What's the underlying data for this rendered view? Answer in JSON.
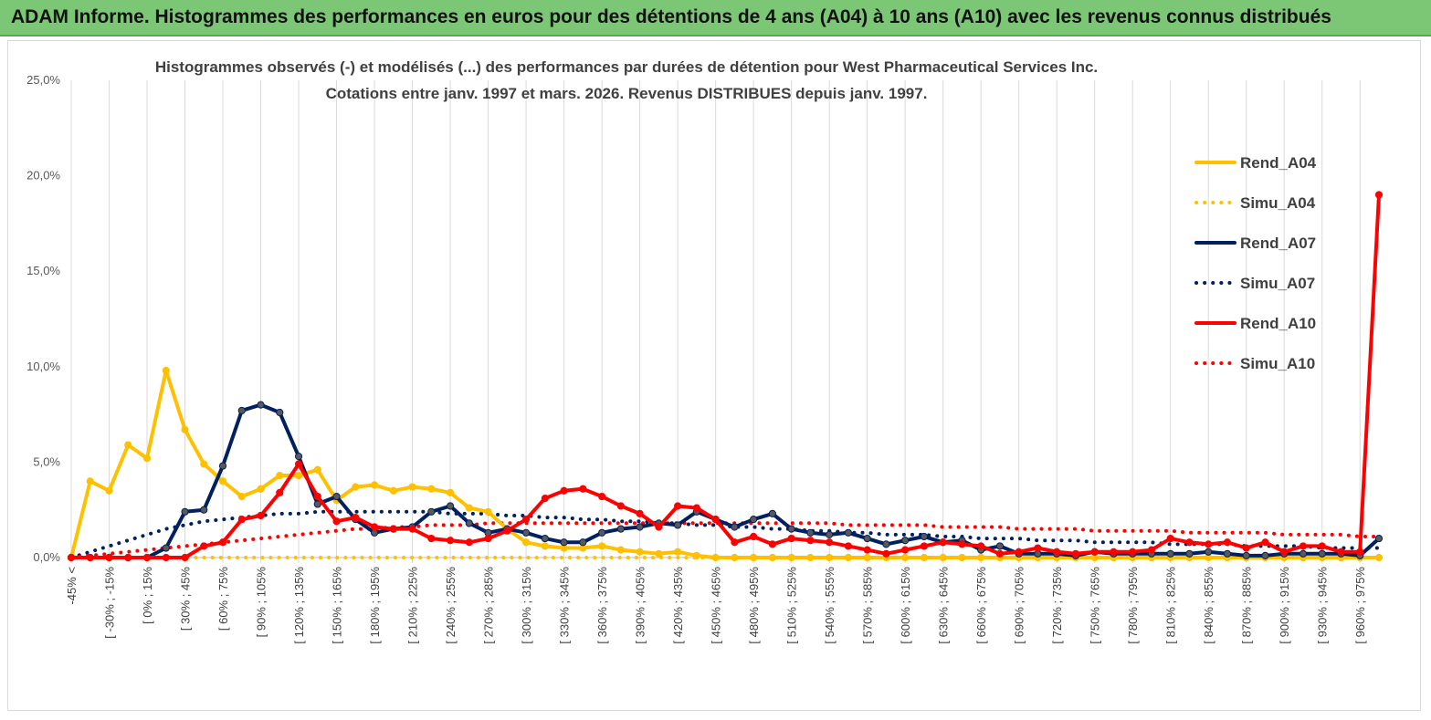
{
  "banner": {
    "title": "ADAM Informe. Histogrammes des performances en euros pour des détentions de 4 ans (A04) à 10 ans (A10) avec les revenus connus distribués"
  },
  "chart_data": {
    "type": "line",
    "title": "Histogrammes observés (-) et modélisés (...) des performances par durées de détention pour West Pharmaceutical Services  Inc.",
    "subtitle": "Cotations entre janv. 1997 et mars. 2026.  Revenus DISTRIBUES depuis janv. 1997.",
    "ylim": [
      0,
      25
    ],
    "yticks": [
      "0,0%",
      "5,0%",
      "10,0%",
      "15,0%",
      "20,0%",
      "25,0%"
    ],
    "grid": "vertical",
    "legend_position": "right",
    "x_tick_labels": [
      "-45% <",
      "[ -30% ; -15%",
      "[ 0% ; 15%",
      "[ 30% ; 45%",
      "[ 60% ; 75%",
      "[ 90% ; 105%",
      "[ 120% ; 135%",
      "[ 150% ; 165%",
      "[ 180% ; 195%",
      "[ 210% ; 225%",
      "[ 240% ; 255%",
      "[ 270% ; 285%",
      "[ 300% ; 315%",
      "[ 330% ; 345%",
      "[ 360% ; 375%",
      "[ 390% ; 405%",
      "[ 420% ; 435%",
      "[ 450% ; 465%",
      "[ 480% ; 495%",
      "[ 510% ; 525%",
      "[ 540% ; 555%",
      "[ 570% ; 585%",
      "[ 600% ; 615%",
      "[ 630% ; 645%",
      "[ 660% ; 675%",
      "[ 690% ; 705%",
      "[ 720% ; 735%",
      "[ 750% ; 765%",
      "[ 780% ; 795%",
      "[ 810% ; 825%",
      "[ 840% ; 855%",
      "[ 870% ; 885%",
      "[ 900% ; 915%",
      "[ 930% ; 945%",
      "[ 960% ; 975%"
    ],
    "series": [
      {
        "name": "Rend_A04",
        "color": "#ffc000",
        "style": "solid",
        "markers": true,
        "values": [
          0,
          4.0,
          3.5,
          5.9,
          5.2,
          9.8,
          6.7,
          4.9,
          4.0,
          3.2,
          3.6,
          4.3,
          4.3,
          4.6,
          3.0,
          3.7,
          3.8,
          3.5,
          3.7,
          3.6,
          3.4,
          2.6,
          2.4,
          1.5,
          0.8,
          0.6,
          0.5,
          0.5,
          0.6,
          0.4,
          0.3,
          0.2,
          0.3,
          0.1,
          0,
          0,
          0,
          0,
          0,
          0,
          0,
          0,
          0,
          0,
          0,
          0,
          0,
          0,
          0,
          0,
          0,
          0,
          0,
          0,
          0,
          0,
          0,
          0,
          0,
          0,
          0,
          0,
          0,
          0,
          0,
          0,
          0,
          0,
          0,
          0
        ]
      },
      {
        "name": "Simu_A04",
        "color": "#ffc000",
        "style": "dotted",
        "markers": false,
        "values": [
          0,
          0,
          0,
          0,
          0,
          0,
          0,
          0,
          0,
          0,
          0,
          0,
          0,
          0,
          0,
          0,
          0,
          0,
          0,
          0,
          0,
          0,
          0,
          0,
          0,
          0,
          0,
          0,
          0,
          0,
          0,
          0,
          0,
          0,
          0,
          0,
          0,
          0,
          0,
          0,
          0,
          0,
          0,
          0,
          0,
          0,
          0,
          0,
          0,
          0,
          0,
          0,
          0,
          0,
          0,
          0,
          0,
          0,
          0,
          0,
          0,
          0,
          0,
          0,
          0,
          0,
          0,
          0,
          0,
          0
        ]
      },
      {
        "name": "Rend_A07",
        "color": "#002060",
        "style": "solid",
        "markers": true,
        "values": [
          0,
          0,
          0,
          0,
          0,
          0.5,
          2.4,
          2.5,
          4.8,
          7.7,
          8.0,
          7.6,
          5.3,
          2.8,
          3.2,
          2.0,
          1.3,
          1.5,
          1.6,
          2.4,
          2.7,
          1.8,
          1.3,
          1.5,
          1.3,
          1.0,
          0.8,
          0.8,
          1.3,
          1.5,
          1.6,
          1.8,
          1.7,
          2.4,
          2.0,
          1.6,
          2.0,
          2.3,
          1.5,
          1.3,
          1.2,
          1.3,
          1.0,
          0.7,
          0.9,
          1.1,
          0.8,
          0.9,
          0.4,
          0.6,
          0.2,
          0.2,
          0.2,
          0.1,
          0.3,
          0.2,
          0.2,
          0.2,
          0.2,
          0.2,
          0.3,
          0.2,
          0.1,
          0.1,
          0.2,
          0.2,
          0.2,
          0.2,
          0.1,
          1.0
        ]
      },
      {
        "name": "Simu_A07",
        "color": "#002060",
        "style": "dotted",
        "markers": false,
        "values": [
          0,
          0.3,
          0.6,
          0.9,
          1.2,
          1.5,
          1.7,
          1.9,
          2.0,
          2.1,
          2.2,
          2.3,
          2.3,
          2.4,
          2.4,
          2.4,
          2.4,
          2.4,
          2.4,
          2.4,
          2.3,
          2.3,
          2.3,
          2.2,
          2.2,
          2.1,
          2.1,
          2.0,
          2.0,
          1.9,
          1.9,
          1.8,
          1.8,
          1.7,
          1.7,
          1.6,
          1.6,
          1.5,
          1.5,
          1.4,
          1.4,
          1.3,
          1.3,
          1.2,
          1.2,
          1.2,
          1.1,
          1.1,
          1.0,
          1.0,
          1.0,
          0.9,
          0.9,
          0.9,
          0.8,
          0.8,
          0.8,
          0.8,
          0.7,
          0.7,
          0.7,
          0.7,
          0.6,
          0.6,
          0.6,
          0.6,
          0.5,
          0.5,
          0.5,
          0.5
        ]
      },
      {
        "name": "Rend_A10",
        "color": "#ff0000",
        "style": "solid",
        "markers": true,
        "values": [
          0,
          0,
          0,
          0,
          0,
          0,
          0,
          0.6,
          0.8,
          2.0,
          2.2,
          3.4,
          4.9,
          3.2,
          1.9,
          2.1,
          1.6,
          1.5,
          1.5,
          1.0,
          0.9,
          0.8,
          1.0,
          1.4,
          2.0,
          3.1,
          3.5,
          3.6,
          3.2,
          2.7,
          2.3,
          1.6,
          2.7,
          2.6,
          2.0,
          0.8,
          1.1,
          0.7,
          1.0,
          0.9,
          0.8,
          0.6,
          0.4,
          0.2,
          0.4,
          0.6,
          0.8,
          0.7,
          0.6,
          0.2,
          0.3,
          0.5,
          0.3,
          0.2,
          0.3,
          0.3,
          0.3,
          0.4,
          1.0,
          0.8,
          0.7,
          0.8,
          0.5,
          0.8,
          0.3,
          0.6,
          0.6,
          0.3,
          0.3,
          19.0
        ]
      },
      {
        "name": "Simu_A10",
        "color": "#ff0000",
        "style": "dotted",
        "markers": false,
        "values": [
          0,
          0.1,
          0.2,
          0.3,
          0.4,
          0.5,
          0.6,
          0.7,
          0.8,
          0.9,
          1.0,
          1.1,
          1.2,
          1.3,
          1.4,
          1.5,
          1.5,
          1.6,
          1.6,
          1.7,
          1.7,
          1.7,
          1.8,
          1.8,
          1.8,
          1.8,
          1.8,
          1.8,
          1.8,
          1.8,
          1.8,
          1.8,
          1.8,
          1.8,
          1.8,
          1.8,
          1.8,
          1.8,
          1.8,
          1.8,
          1.8,
          1.7,
          1.7,
          1.7,
          1.7,
          1.7,
          1.6,
          1.6,
          1.6,
          1.6,
          1.5,
          1.5,
          1.5,
          1.5,
          1.4,
          1.4,
          1.4,
          1.4,
          1.4,
          1.3,
          1.3,
          1.3,
          1.3,
          1.3,
          1.2,
          1.2,
          1.2,
          1.2,
          1.1,
          1.1
        ]
      }
    ]
  }
}
